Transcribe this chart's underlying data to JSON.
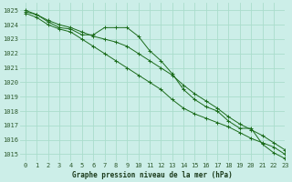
{
  "title": "Graphe pression niveau de la mer (hPa)",
  "bg_color": "#cceee8",
  "grid_color": "#aaddcc",
  "line_color": "#1a6b1a",
  "marker_color": "#1a6b1a",
  "xlim": [
    -0.5,
    23
  ],
  "ylim": [
    1014.5,
    1025.5
  ],
  "xticks": [
    0,
    1,
    2,
    3,
    4,
    5,
    6,
    7,
    8,
    9,
    10,
    11,
    12,
    13,
    14,
    15,
    16,
    17,
    18,
    19,
    20,
    21,
    22,
    23
  ],
  "yticks": [
    1015,
    1016,
    1017,
    1018,
    1019,
    1020,
    1021,
    1022,
    1023,
    1024,
    1025
  ],
  "series": [
    [
      1025.0,
      1024.7,
      1024.2,
      1023.8,
      1023.7,
      1023.3,
      1023.3,
      1023.8,
      1023.8,
      1023.8,
      1023.2,
      1022.2,
      1021.5,
      1020.6,
      1019.5,
      1018.8,
      1018.3,
      1018.0,
      1017.3,
      1016.8,
      1016.8,
      1015.7,
      1015.1,
      1014.7
    ],
    [
      1024.8,
      1024.5,
      1024.0,
      1023.7,
      1023.5,
      1023.0,
      1022.5,
      1022.0,
      1021.5,
      1021.0,
      1020.5,
      1020.0,
      1019.5,
      1018.8,
      1018.2,
      1017.8,
      1017.5,
      1017.2,
      1016.9,
      1016.5,
      1016.1,
      1015.8,
      1015.5,
      1015.0
    ],
    [
      1024.9,
      1024.7,
      1024.3,
      1024.0,
      1023.8,
      1023.5,
      1023.2,
      1023.0,
      1022.8,
      1022.5,
      1022.0,
      1021.5,
      1021.0,
      1020.5,
      1019.8,
      1019.2,
      1018.7,
      1018.2,
      1017.6,
      1017.1,
      1016.7,
      1016.3,
      1015.8,
      1015.3
    ]
  ],
  "xlabel_fontsize": 5.5,
  "tick_fontsize": 5,
  "ytick_fontsize": 5
}
